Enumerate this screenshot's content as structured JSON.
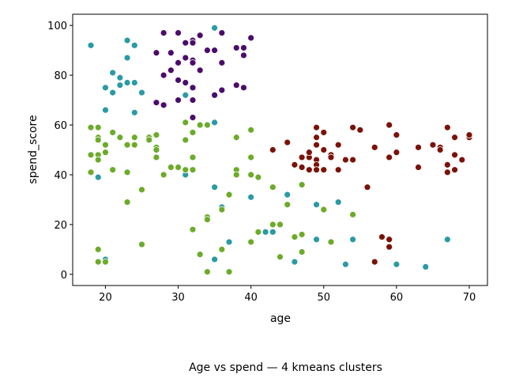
{
  "caption": "Age vs spend — 4 kmeans clusters",
  "chart_data": {
    "type": "scatter",
    "xlabel": "age",
    "ylabel": "spend_score",
    "xlim": [
      15.5,
      72.5
    ],
    "ylim": [
      -4.5,
      104.5
    ],
    "xticks": [
      20,
      30,
      40,
      50,
      60,
      70
    ],
    "yticks": [
      0,
      20,
      40,
      60,
      80,
      100
    ],
    "grid": false,
    "series": [
      {
        "color": "#4b0c6b",
        "points": [
          [
            28,
            97
          ],
          [
            30,
            97
          ],
          [
            32,
            94
          ],
          [
            33,
            96
          ],
          [
            36,
            97
          ],
          [
            32,
            93
          ],
          [
            31,
            93
          ],
          [
            34,
            90
          ],
          [
            35,
            90
          ],
          [
            38,
            91
          ],
          [
            39,
            91
          ],
          [
            40,
            95
          ],
          [
            27,
            89
          ],
          [
            29,
            89
          ],
          [
            31,
            87
          ],
          [
            32,
            86
          ],
          [
            32,
            85
          ],
          [
            30,
            85
          ],
          [
            36,
            85
          ],
          [
            39,
            88
          ],
          [
            33,
            82
          ],
          [
            29,
            82
          ],
          [
            28,
            80
          ],
          [
            30,
            78
          ],
          [
            31,
            77
          ],
          [
            32,
            75
          ],
          [
            38,
            76
          ],
          [
            39,
            75
          ],
          [
            31,
            72
          ],
          [
            32,
            70
          ],
          [
            35,
            72
          ],
          [
            36,
            74
          ],
          [
            27,
            69
          ],
          [
            28,
            68
          ],
          [
            30,
            70
          ],
          [
            32,
            63
          ]
        ]
      },
      {
        "color": "#2a9aa5",
        "points": [
          [
            18,
            92
          ],
          [
            23,
            94
          ],
          [
            24,
            92
          ],
          [
            35,
            99
          ],
          [
            23,
            87
          ],
          [
            21,
            81
          ],
          [
            22,
            79
          ],
          [
            23,
            77
          ],
          [
            24,
            77
          ],
          [
            22,
            76
          ],
          [
            20,
            75
          ],
          [
            21,
            73
          ],
          [
            25,
            73
          ],
          [
            31,
            72
          ],
          [
            20,
            66
          ],
          [
            24,
            65
          ],
          [
            35,
            61
          ],
          [
            19,
            39
          ],
          [
            31,
            40
          ],
          [
            35,
            35
          ],
          [
            45,
            32
          ],
          [
            40,
            31
          ],
          [
            52,
            29
          ],
          [
            49,
            28
          ],
          [
            36,
            27
          ],
          [
            37,
            13
          ],
          [
            42,
            17
          ],
          [
            43,
            17
          ],
          [
            49,
            14
          ],
          [
            54,
            14
          ],
          [
            35,
            6
          ],
          [
            46,
            5
          ],
          [
            53,
            4
          ],
          [
            60,
            4
          ],
          [
            64,
            3
          ],
          [
            67,
            14
          ],
          [
            20,
            6
          ]
        ]
      },
      {
        "color": "#7b1208",
        "points": [
          [
            43,
            50
          ],
          [
            45,
            53
          ],
          [
            46,
            44
          ],
          [
            47,
            47
          ],
          [
            47,
            43
          ],
          [
            48,
            42
          ],
          [
            48,
            47
          ],
          [
            48,
            49
          ],
          [
            49,
            55
          ],
          [
            49,
            59
          ],
          [
            49,
            52
          ],
          [
            50,
            57
          ],
          [
            50,
            50
          ],
          [
            49,
            46
          ],
          [
            49,
            44
          ],
          [
            49,
            42
          ],
          [
            50,
            42
          ],
          [
            51,
            48
          ],
          [
            52,
            52
          ],
          [
            51,
            47
          ],
          [
            52,
            42
          ],
          [
            53,
            46
          ],
          [
            54,
            46
          ],
          [
            54,
            59
          ],
          [
            55,
            58
          ],
          [
            56,
            35
          ],
          [
            57,
            51
          ],
          [
            59,
            60
          ],
          [
            59,
            47
          ],
          [
            60,
            49
          ],
          [
            60,
            56
          ],
          [
            63,
            51
          ],
          [
            63,
            43
          ],
          [
            65,
            52
          ],
          [
            66,
            51
          ],
          [
            66,
            50
          ],
          [
            67,
            59
          ],
          [
            67,
            41
          ],
          [
            67,
            44
          ],
          [
            68,
            55
          ],
          [
            68,
            48
          ],
          [
            69,
            46
          ],
          [
            70,
            55
          ],
          [
            70,
            56
          ],
          [
            68,
            42
          ],
          [
            58,
            15
          ],
          [
            59,
            14
          ],
          [
            59,
            11
          ],
          [
            57,
            5
          ]
        ]
      },
      {
        "color": "#6cab2a",
        "points": [
          [
            18,
            59
          ],
          [
            19,
            59
          ],
          [
            19,
            55
          ],
          [
            19,
            54
          ],
          [
            20,
            52
          ],
          [
            21,
            57
          ],
          [
            22,
            55
          ],
          [
            23,
            52
          ],
          [
            24,
            52
          ],
          [
            24,
            55
          ],
          [
            26,
            55
          ],
          [
            26,
            54
          ],
          [
            27,
            56
          ],
          [
            27,
            51
          ],
          [
            27,
            50
          ],
          [
            18,
            48
          ],
          [
            19,
            48
          ],
          [
            19,
            46
          ],
          [
            20,
            49
          ],
          [
            27,
            47
          ],
          [
            29,
            43
          ],
          [
            30,
            43
          ],
          [
            31,
            42
          ],
          [
            32,
            42
          ],
          [
            31,
            61
          ],
          [
            32,
            57
          ],
          [
            33,
            60
          ],
          [
            34,
            60
          ],
          [
            31,
            54
          ],
          [
            32,
            47
          ],
          [
            28,
            40
          ],
          [
            18,
            41
          ],
          [
            21,
            42
          ],
          [
            23,
            41
          ],
          [
            25,
            34
          ],
          [
            38,
            55
          ],
          [
            40,
            58
          ],
          [
            38,
            42
          ],
          [
            38,
            40
          ],
          [
            40,
            47
          ],
          [
            40,
            40
          ],
          [
            41,
            39
          ],
          [
            43,
            35
          ],
          [
            47,
            36
          ],
          [
            50,
            26
          ],
          [
            54,
            24
          ],
          [
            37,
            32
          ],
          [
            36,
            26
          ],
          [
            34,
            23
          ],
          [
            34,
            22
          ],
          [
            32,
            18
          ],
          [
            40,
            13
          ],
          [
            41,
            17
          ],
          [
            43,
            20
          ],
          [
            44,
            20
          ],
          [
            45,
            28
          ],
          [
            46,
            15
          ],
          [
            47,
            16
          ],
          [
            47,
            9
          ],
          [
            44,
            7
          ],
          [
            51,
            13
          ],
          [
            33,
            8
          ],
          [
            36,
            10
          ],
          [
            34,
            1
          ],
          [
            37,
            1
          ],
          [
            23,
            29
          ],
          [
            25,
            12
          ],
          [
            19,
            10
          ],
          [
            19,
            5
          ],
          [
            20,
            5
          ]
        ]
      }
    ]
  }
}
